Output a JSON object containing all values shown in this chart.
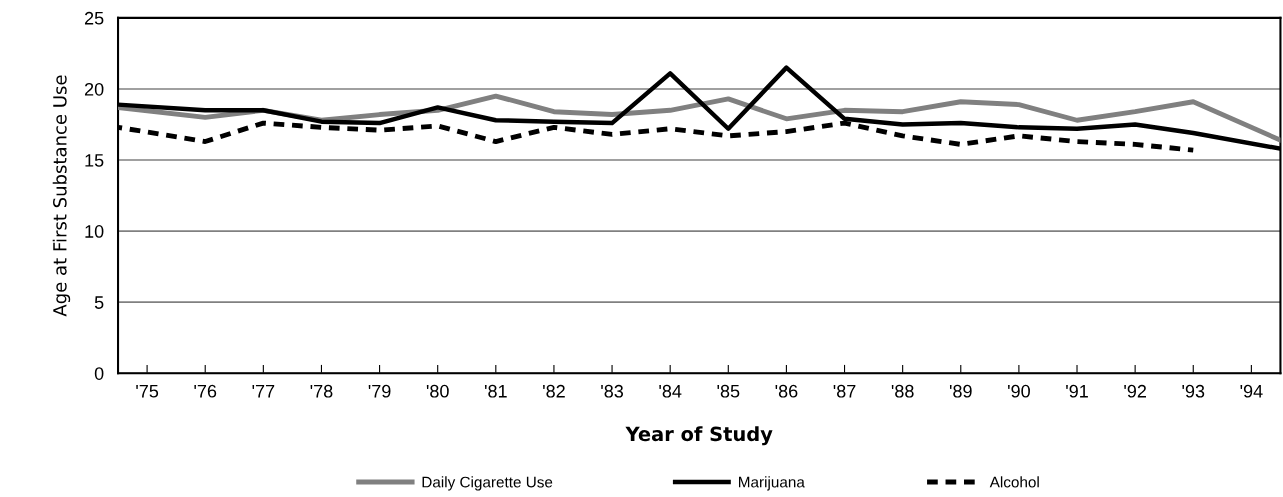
{
  "chart_data": {
    "type": "line",
    "xlabel": "Year of Study",
    "ylabel": "Age at First Substance Use",
    "xlim": [
      74.5,
      94.5
    ],
    "ylim": [
      0,
      25
    ],
    "yticks": [
      0,
      5,
      10,
      15,
      20,
      25
    ],
    "xticks": [
      {
        "value": 75,
        "label": "'75"
      },
      {
        "value": 76,
        "label": "'76"
      },
      {
        "value": 77,
        "label": "'77"
      },
      {
        "value": 78,
        "label": "'78"
      },
      {
        "value": 79,
        "label": "'79"
      },
      {
        "value": 80,
        "label": "'80"
      },
      {
        "value": 81,
        "label": "'81"
      },
      {
        "value": 82,
        "label": "'82"
      },
      {
        "value": 83,
        "label": "'83"
      },
      {
        "value": 84,
        "label": "'84"
      },
      {
        "value": 85,
        "label": "'85"
      },
      {
        "value": 86,
        "label": "'86"
      },
      {
        "value": 87,
        "label": "'87"
      },
      {
        "value": 88,
        "label": "'88"
      },
      {
        "value": 89,
        "label": "'89"
      },
      {
        "value": 90,
        "label": "'90"
      },
      {
        "value": 91,
        "label": "'91"
      },
      {
        "value": 92,
        "label": "'92"
      },
      {
        "value": 93,
        "label": "'93"
      },
      {
        "value": 94,
        "label": "'94"
      }
    ],
    "grid": "y",
    "legend": "bottom",
    "marker": "none",
    "series": [
      {
        "name": "Daily Cigarette Use",
        "color": "#808080",
        "line_style": "solid",
        "x": [
          74.5,
          76,
          77,
          78,
          79,
          80,
          81,
          82,
          83,
          84,
          85,
          86,
          87,
          88,
          89,
          90,
          91,
          92,
          93,
          94.5
        ],
        "values": [
          18.7,
          18.0,
          18.5,
          17.8,
          18.2,
          18.5,
          19.5,
          18.4,
          18.2,
          18.5,
          19.3,
          17.9,
          18.5,
          18.4,
          19.1,
          18.9,
          17.8,
          18.4,
          19.1,
          16.4
        ]
      },
      {
        "name": "Marijuana",
        "color": "#000000",
        "line_style": "solid",
        "x": [
          74.5,
          76,
          77,
          78,
          79,
          80,
          81,
          82,
          83,
          84,
          85,
          86,
          87,
          88,
          89,
          90,
          91,
          92,
          93,
          94.5
        ],
        "values": [
          18.9,
          18.5,
          18.5,
          17.7,
          17.6,
          18.7,
          17.8,
          17.7,
          17.6,
          21.1,
          17.2,
          21.5,
          17.9,
          17.5,
          17.6,
          17.3,
          17.2,
          17.5,
          16.9,
          15.8
        ]
      },
      {
        "name": "Alcohol",
        "color": "#000000",
        "line_style": "dashed",
        "x": [
          74.5,
          76,
          77,
          78,
          79,
          80,
          81,
          82,
          83,
          84,
          85,
          86,
          87,
          88,
          89,
          90,
          91,
          92,
          93
        ],
        "values": [
          17.3,
          16.3,
          17.6,
          17.3,
          17.1,
          17.4,
          16.3,
          17.3,
          16.8,
          17.2,
          16.7,
          17.0,
          17.6,
          16.7,
          16.1,
          16.7,
          16.3,
          16.1,
          15.7
        ]
      }
    ]
  }
}
